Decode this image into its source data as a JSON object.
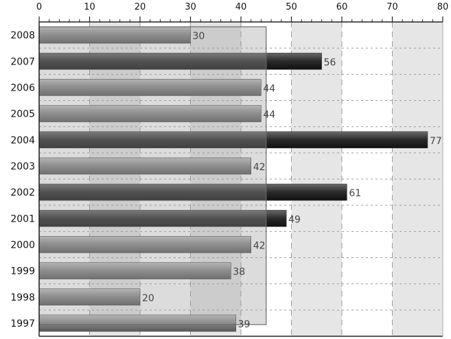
{
  "chart_data": {
    "type": "bar",
    "orientation": "horizontal",
    "categories": [
      "2008",
      "2007",
      "2006",
      "2005",
      "2004",
      "2003",
      "2002",
      "2001",
      "2000",
      "1999",
      "1998",
      "1997"
    ],
    "values": [
      30,
      56,
      44,
      44,
      77,
      42,
      61,
      49,
      42,
      38,
      20,
      39
    ],
    "value_labels": [
      "30",
      "56",
      "44",
      "44",
      "77",
      "42",
      "61",
      "49",
      "42",
      "38",
      "20",
      "39"
    ],
    "x_ticks": [
      "0",
      "10",
      "20",
      "30",
      "40",
      "50",
      "60",
      "70",
      "80"
    ],
    "xlim": [
      0,
      80
    ],
    "x_axis_position": "top",
    "grid": true,
    "overlay_band": [
      0,
      45
    ],
    "colors": {
      "bar_light": "#c2c2c2",
      "bar_mid": "#8a8a8a",
      "bar_dark": "#2a2a2a",
      "stripe_gray": "#e6e6e6",
      "overlay": "#9a9a9a",
      "grid_line": "#9a9a9a",
      "axis": "#222222"
    }
  }
}
